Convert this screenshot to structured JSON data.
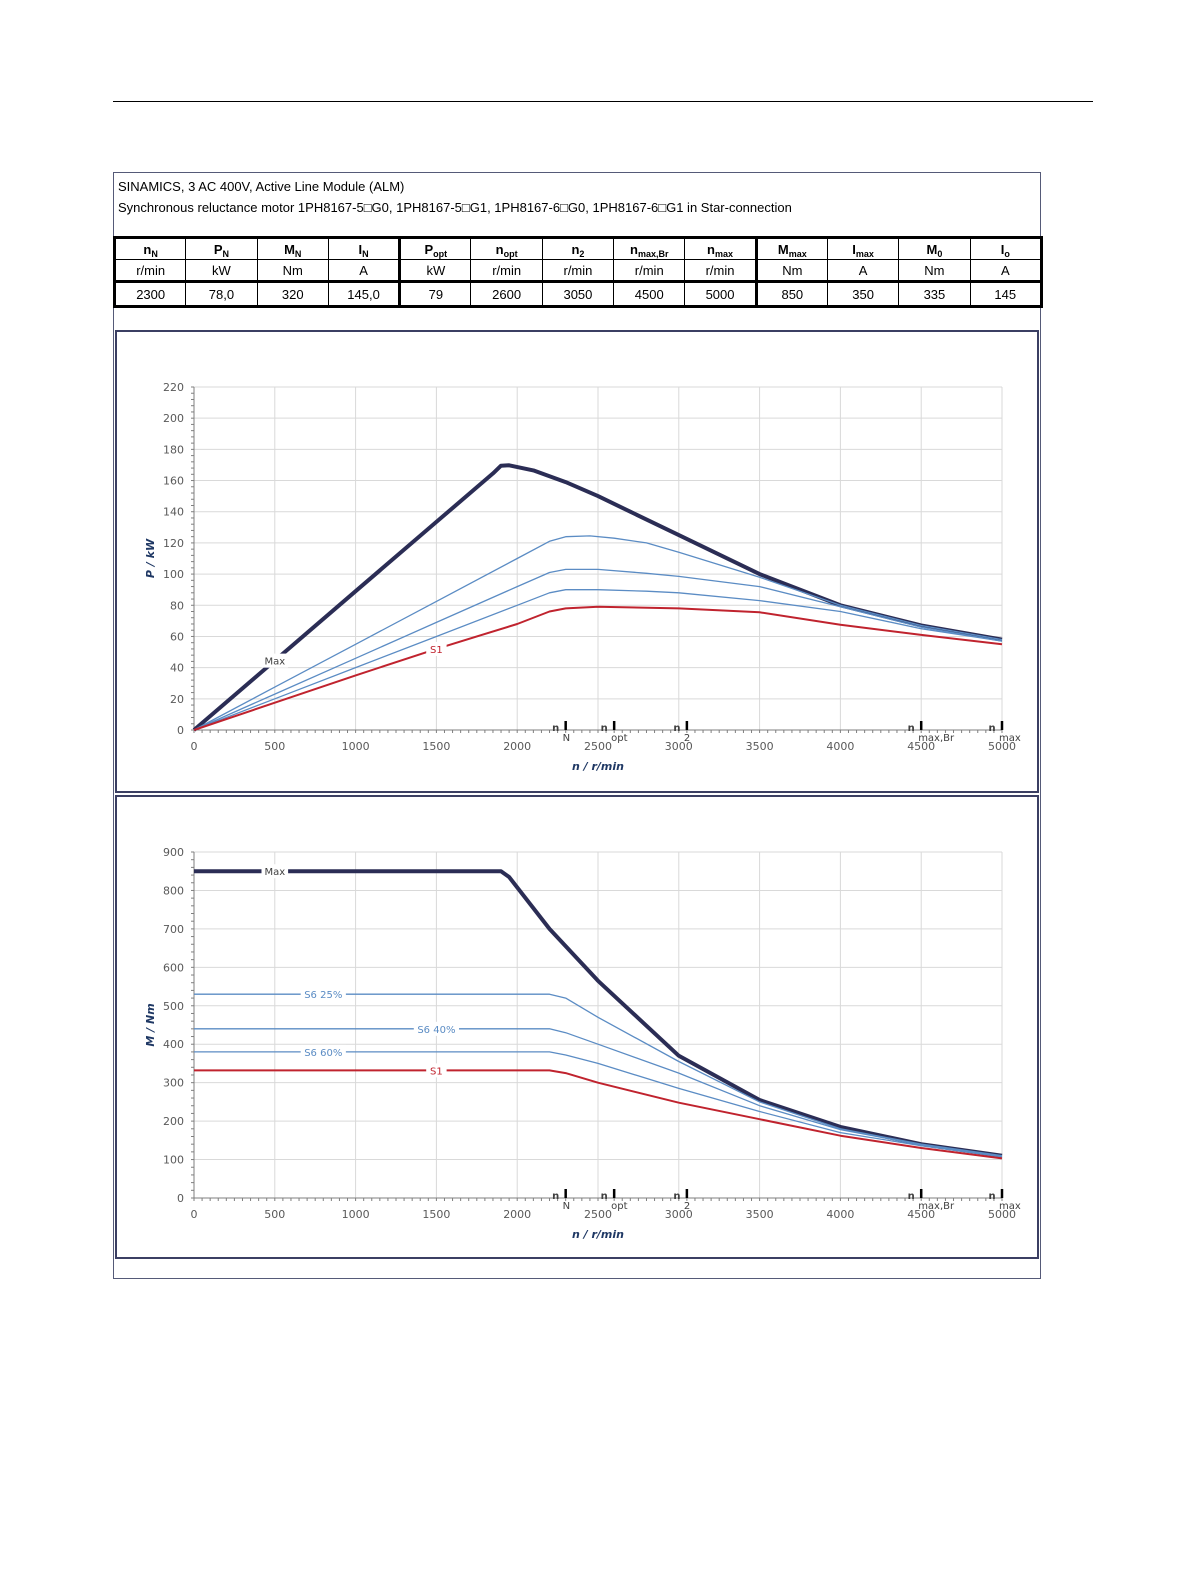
{
  "header": {
    "line1": "SINAMICS, 3 AC 400V, Active Line Module (ALM)",
    "line2": "Synchronous reluctance motor  1PH8167-5□G0,  1PH8167-5□G1,  1PH8167-6□G0,  1PH8167-6□G1   in Star-connection"
  },
  "table": {
    "columns": [
      {
        "sym": "n",
        "sub": "N",
        "unit": "r/min",
        "value": "2300"
      },
      {
        "sym": "P",
        "sub": "N",
        "unit": "kW",
        "value": "78,0"
      },
      {
        "sym": "M",
        "sub": "N",
        "unit": "Nm",
        "value": "320"
      },
      {
        "sym": "I",
        "sub": "N",
        "unit": "A",
        "value": "145,0"
      },
      {
        "sym": "P",
        "sub": "opt",
        "unit": "kW",
        "value": "79"
      },
      {
        "sym": "n",
        "sub": "opt",
        "unit": "r/min",
        "value": "2600"
      },
      {
        "sym": "n",
        "sub": "2",
        "unit": "r/min",
        "value": "3050"
      },
      {
        "sym": "n",
        "sub": "max,Br",
        "unit": "r/min",
        "value": "4500"
      },
      {
        "sym": "n",
        "sub": "max",
        "unit": "r/min",
        "value": "5000"
      },
      {
        "sym": "M",
        "sub": "max",
        "unit": "Nm",
        "value": "850"
      },
      {
        "sym": "I",
        "sub": "max",
        "unit": "A",
        "value": "350"
      },
      {
        "sym": "M",
        "sub": "0",
        "unit": "Nm",
        "value": "335"
      },
      {
        "sym": "I",
        "sub": "o",
        "unit": "A",
        "value": "145"
      }
    ]
  },
  "colors": {
    "max": "#2b2d55",
    "s1": "#c0232e",
    "s6": "#5b8cc4",
    "grid": "#d9d9d9"
  },
  "markers": [
    {
      "n": 2300,
      "sym": "n",
      "sub": "N"
    },
    {
      "n": 2600,
      "sym": "n",
      "sub": "opt"
    },
    {
      "n": 3050,
      "sym": "n",
      "sub": "2"
    },
    {
      "n": 4500,
      "sym": "n",
      "sub": "max,Br"
    },
    {
      "n": 5000,
      "sym": "n",
      "sub": "max"
    }
  ],
  "chart_data": [
    {
      "type": "line",
      "xlabel": "n / r/min",
      "ylabel": "P / kW",
      "xlim": [
        0,
        5000
      ],
      "ylim": [
        0,
        220
      ],
      "xticks": [
        0,
        500,
        1000,
        1500,
        2000,
        2500,
        3000,
        3500,
        4000,
        4500,
        5000
      ],
      "yticks": [
        0,
        20,
        40,
        60,
        80,
        100,
        120,
        140,
        160,
        180,
        200,
        220
      ],
      "grid": true,
      "series": [
        {
          "name": "Max",
          "key": "max",
          "label_at": 500,
          "x": [
            0,
            500,
            1000,
            1500,
            1850,
            1900,
            1950,
            2100,
            2300,
            2500,
            2700,
            3000,
            3500,
            4000,
            4500,
            5000
          ],
          "y": [
            0,
            44.5,
            89,
            133.5,
            164.6,
            169.5,
            169.8,
            166.5,
            159,
            150,
            140,
            125,
            100,
            80,
            67,
            58
          ]
        },
        {
          "name": "",
          "key": "s6",
          "x": [
            0,
            500,
            1000,
            1500,
            2000,
            2200,
            2300,
            2450,
            2600,
            2800,
            3000,
            3500,
            4000,
            4500,
            5000
          ],
          "y": [
            0,
            27.5,
            55,
            82.5,
            110,
            121,
            124,
            124.5,
            123,
            120,
            114,
            98,
            80,
            67,
            58
          ]
        },
        {
          "name": "",
          "key": "s6",
          "x": [
            0,
            500,
            1000,
            1500,
            2000,
            2200,
            2300,
            2500,
            2800,
            3000,
            3500,
            4000,
            4500,
            5000
          ],
          "y": [
            0,
            23,
            46,
            69,
            92,
            101,
            103,
            103,
            100.5,
            98.5,
            92,
            79,
            66,
            57
          ]
        },
        {
          "name": "",
          "key": "s6",
          "x": [
            0,
            500,
            1000,
            1500,
            2000,
            2200,
            2300,
            2500,
            2800,
            3000,
            3500,
            4000,
            4500,
            5000
          ],
          "y": [
            0,
            20,
            40,
            60,
            80,
            88,
            90,
            90,
            89,
            88,
            83,
            76,
            65,
            57
          ]
        },
        {
          "name": "S1",
          "key": "s1",
          "label_at": 1500,
          "x": [
            0,
            500,
            1000,
            1500,
            2000,
            2200,
            2300,
            2500,
            3000,
            3500,
            4000,
            4500,
            5000
          ],
          "y": [
            0,
            17.5,
            35,
            52,
            68,
            76,
            78,
            79,
            78,
            75.5,
            67.5,
            61,
            55
          ]
        }
      ]
    },
    {
      "type": "line",
      "xlabel": "n / r/min",
      "ylabel": "M / Nm",
      "xlim": [
        0,
        5000
      ],
      "ylim": [
        0,
        900
      ],
      "xticks": [
        0,
        500,
        1000,
        1500,
        2000,
        2500,
        3000,
        3500,
        4000,
        4500,
        5000
      ],
      "yticks": [
        0,
        100,
        200,
        300,
        400,
        500,
        600,
        700,
        800,
        900
      ],
      "grid": true,
      "series": [
        {
          "name": "Max",
          "key": "max",
          "label_at": 500,
          "x": [
            0,
            1000,
            1900,
            1950,
            2200,
            2500,
            3000,
            3500,
            4000,
            4500,
            5000
          ],
          "y": [
            850,
            850,
            850,
            835,
            700,
            565,
            370,
            255,
            185,
            140,
            110
          ]
        },
        {
          "name": "S6 25%",
          "key": "s6",
          "label_at": 800,
          "x": [
            0,
            1000,
            2200,
            2300,
            2500,
            3000,
            3500,
            4000,
            4500,
            5000
          ],
          "y": [
            530,
            530,
            530,
            520,
            470,
            355,
            250,
            180,
            140,
            110
          ]
        },
        {
          "name": "S6 40%",
          "key": "s6",
          "label_at": 1500,
          "x": [
            0,
            1000,
            2200,
            2300,
            2500,
            3000,
            3500,
            4000,
            4500,
            5000
          ],
          "y": [
            440,
            440,
            440,
            430,
            400,
            325,
            240,
            178,
            138,
            108
          ]
        },
        {
          "name": "S6 60%",
          "key": "s6",
          "label_at": 800,
          "x": [
            0,
            1000,
            2200,
            2300,
            2500,
            3000,
            3500,
            4000,
            4500,
            5000
          ],
          "y": [
            380,
            380,
            380,
            372,
            350,
            285,
            225,
            170,
            136,
            107
          ]
        },
        {
          "name": "S1",
          "key": "s1",
          "label_at": 1500,
          "x": [
            0,
            1000,
            2200,
            2300,
            2500,
            3000,
            3500,
            4000,
            4500,
            5000
          ],
          "y": [
            332,
            332,
            332,
            325,
            300,
            248,
            205,
            162,
            130,
            103
          ]
        }
      ]
    }
  ]
}
